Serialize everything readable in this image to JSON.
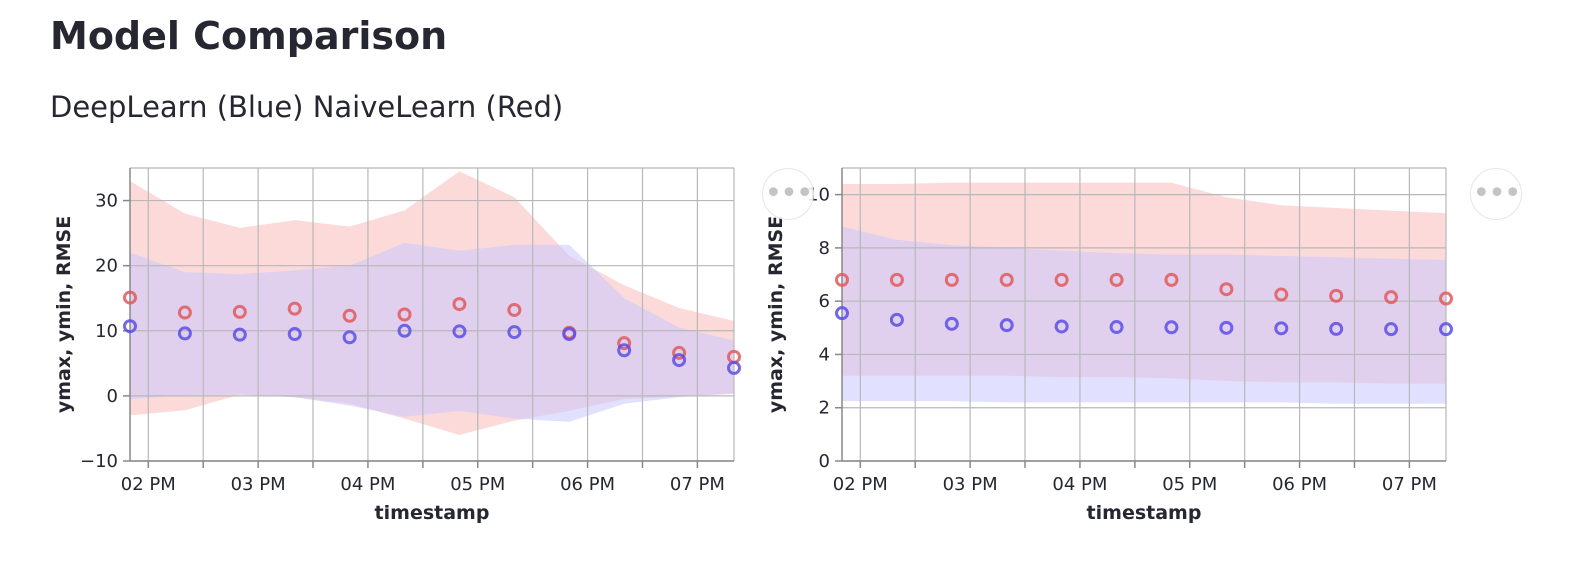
{
  "title": "Model Comparison",
  "subtitle": "DeepLearn (Blue) NaiveLearn (Red)",
  "menu": {
    "icon": "more-horizontal-icon",
    "glyph": "•••"
  },
  "colors": {
    "blue_band": "#c9c9ff",
    "red_band": "#fbd4d4",
    "blue_point": "#5b4ee6",
    "red_point": "#e0595c",
    "grid": "#b8b8b8",
    "axis": "#888888",
    "text": "#262730"
  },
  "chart_data": [
    {
      "type": "area",
      "xlabel": "timestamp",
      "ylabel": "ymax, ymin, RMSE",
      "ylim": [
        -10,
        35
      ],
      "yticks": [
        -10,
        0,
        10,
        20,
        30
      ],
      "xlim": [
        "13:50",
        "19:20"
      ],
      "xticks": [
        {
          "t": "14:00",
          "label": "02 PM"
        },
        {
          "t": "14:30",
          "label": ""
        },
        {
          "t": "15:00",
          "label": "03 PM"
        },
        {
          "t": "15:30",
          "label": ""
        },
        {
          "t": "16:00",
          "label": "04 PM"
        },
        {
          "t": "16:30",
          "label": ""
        },
        {
          "t": "17:00",
          "label": "05 PM"
        },
        {
          "t": "17:30",
          "label": ""
        },
        {
          "t": "18:00",
          "label": "06 PM"
        },
        {
          "t": "18:30",
          "label": ""
        },
        {
          "t": "19:00",
          "label": "07 PM"
        },
        {
          "t": "19:30",
          "label": ""
        }
      ],
      "grid": true,
      "x": [
        "13:50",
        "14:20",
        "14:50",
        "15:20",
        "15:50",
        "16:20",
        "16:50",
        "17:20",
        "17:50",
        "18:20",
        "18:50",
        "19:20"
      ],
      "series": [
        {
          "color": "blue",
          "ymax": [
            22,
            19,
            18.7,
            19.3,
            20,
            23.5,
            22.3,
            23.2,
            23.2,
            15,
            10.5,
            8.5
          ],
          "ymin": [
            -0.5,
            0.1,
            0.2,
            -0.2,
            -1.5,
            -3.2,
            -2.3,
            -3.5,
            -4,
            -1.2,
            -0.2,
            0.4
          ],
          "rmse": [
            10.7,
            9.6,
            9.4,
            9.5,
            9.0,
            10.0,
            9.9,
            9.8,
            9.5,
            7.0,
            5.5,
            4.3
          ]
        },
        {
          "color": "red",
          "ymax": [
            33,
            28,
            25.8,
            27,
            26,
            28.5,
            34.5,
            30.5,
            21.5,
            17,
            13.5,
            11.5
          ],
          "ymin": [
            -3,
            -2.2,
            0.2,
            -0.2,
            -1.2,
            -3.5,
            -6,
            -3.8,
            -2.3,
            -0.5,
            -0.1,
            0.3
          ],
          "rmse": [
            15.1,
            12.8,
            12.9,
            13.4,
            12.3,
            12.5,
            14.1,
            13.2,
            9.7,
            8.1,
            6.6,
            6.0
          ]
        }
      ]
    },
    {
      "type": "area",
      "xlabel": "timestamp",
      "ylabel": "ymax, ymin, RMSE",
      "ylim": [
        0,
        11
      ],
      "yticks": [
        0,
        2,
        4,
        6,
        8,
        10
      ],
      "xlim": [
        "13:50",
        "19:20"
      ],
      "xticks": [
        {
          "t": "14:00",
          "label": "02 PM"
        },
        {
          "t": "14:30",
          "label": ""
        },
        {
          "t": "15:00",
          "label": "03 PM"
        },
        {
          "t": "15:30",
          "label": ""
        },
        {
          "t": "16:00",
          "label": "04 PM"
        },
        {
          "t": "16:30",
          "label": ""
        },
        {
          "t": "17:00",
          "label": "05 PM"
        },
        {
          "t": "17:30",
          "label": ""
        },
        {
          "t": "18:00",
          "label": "06 PM"
        },
        {
          "t": "18:30",
          "label": ""
        },
        {
          "t": "19:00",
          "label": "07 PM"
        },
        {
          "t": "19:30",
          "label": ""
        }
      ],
      "grid": true,
      "x": [
        "13:50",
        "14:20",
        "14:50",
        "15:20",
        "15:50",
        "16:20",
        "16:50",
        "17:20",
        "17:50",
        "18:20",
        "18:50",
        "19:20"
      ],
      "series": [
        {
          "color": "blue",
          "ymax": [
            8.8,
            8.3,
            8.1,
            8.0,
            7.9,
            7.8,
            7.75,
            7.75,
            7.7,
            7.65,
            7.6,
            7.55
          ],
          "ymin": [
            2.25,
            2.25,
            2.25,
            2.2,
            2.2,
            2.2,
            2.2,
            2.2,
            2.2,
            2.15,
            2.15,
            2.15
          ],
          "rmse": [
            5.55,
            5.3,
            5.15,
            5.1,
            5.05,
            5.03,
            5.02,
            5.0,
            4.98,
            4.96,
            4.95,
            4.95
          ]
        },
        {
          "color": "red",
          "ymax": [
            10.4,
            10.4,
            10.45,
            10.45,
            10.45,
            10.45,
            10.45,
            9.9,
            9.6,
            9.5,
            9.4,
            9.3
          ],
          "ymin": [
            3.2,
            3.2,
            3.2,
            3.2,
            3.15,
            3.15,
            3.1,
            3.0,
            2.95,
            2.95,
            2.9,
            2.9
          ],
          "rmse": [
            6.8,
            6.8,
            6.8,
            6.8,
            6.8,
            6.8,
            6.8,
            6.45,
            6.25,
            6.2,
            6.15,
            6.1
          ]
        }
      ]
    }
  ]
}
